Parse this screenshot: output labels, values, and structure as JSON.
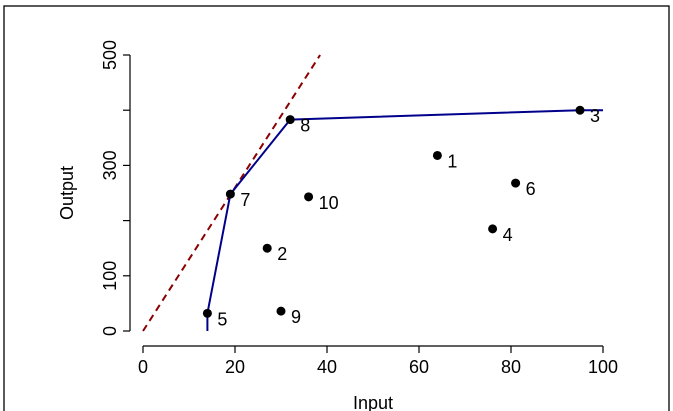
{
  "chart_data": {
    "type": "scatter",
    "xlabel": "Input",
    "ylabel": "Output",
    "xlim": [
      0,
      100
    ],
    "ylim": [
      0,
      500
    ],
    "x_ticks": [
      0,
      20,
      40,
      60,
      80,
      100
    ],
    "y_ticks": [
      0,
      100,
      300,
      500
    ],
    "points": [
      {
        "label": "1",
        "x": 64,
        "y": 318
      },
      {
        "label": "2",
        "x": 27,
        "y": 150
      },
      {
        "label": "3",
        "x": 95,
        "y": 400
      },
      {
        "label": "4",
        "x": 76,
        "y": 185
      },
      {
        "label": "5",
        "x": 14,
        "y": 32
      },
      {
        "label": "6",
        "x": 81,
        "y": 268
      },
      {
        "label": "7",
        "x": 19,
        "y": 248
      },
      {
        "label": "8",
        "x": 32,
        "y": 383
      },
      {
        "label": "9",
        "x": 30,
        "y": 36
      },
      {
        "label": "10",
        "x": 36,
        "y": 243
      }
    ],
    "frontier": [
      [
        14,
        0
      ],
      [
        14,
        32
      ],
      [
        19,
        248
      ],
      [
        32,
        383
      ],
      [
        95,
        400
      ],
      [
        100,
        400
      ]
    ],
    "reference_line": [
      [
        0,
        0
      ],
      [
        38.5,
        500
      ]
    ],
    "colors": {
      "points": "#000000",
      "frontier": "#00008B",
      "reference_line": "#8B0000"
    }
  }
}
